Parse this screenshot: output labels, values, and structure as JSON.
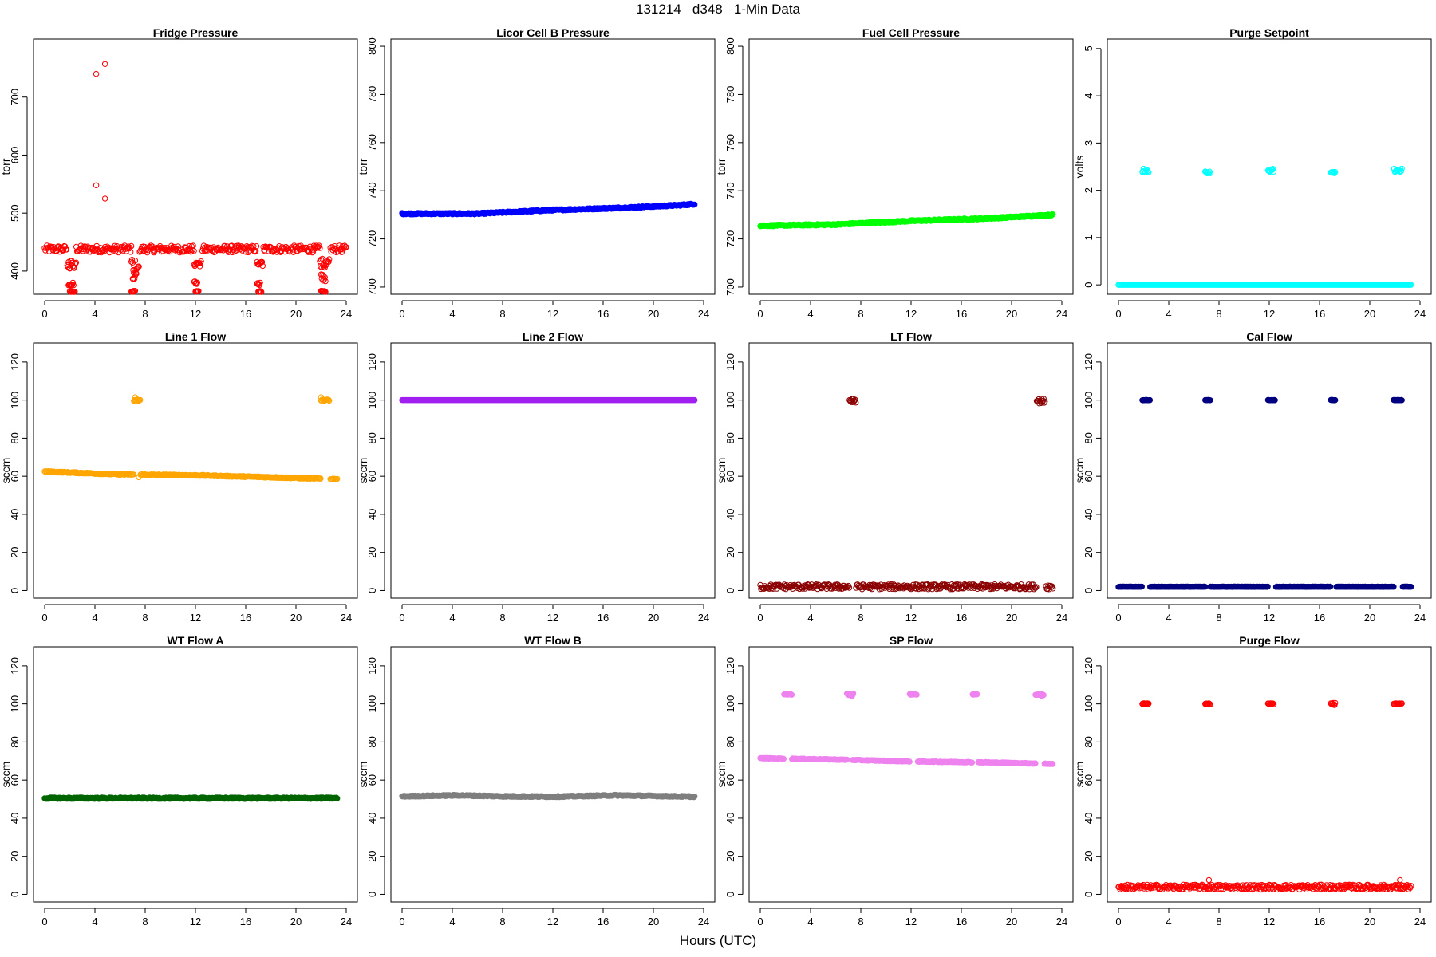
{
  "figure": {
    "title": "131214   d348   1-Min Data",
    "xlabel": "Hours (UTC)"
  },
  "chart_data": [
    {
      "type": "scatter",
      "title": "Fridge Pressure",
      "ylabel": "torr",
      "color": "#ff0000",
      "xlim": [
        0,
        24
      ],
      "ylim": [
        360,
        800
      ],
      "xticks": [
        "0",
        "4",
        "8",
        "12",
        "16",
        "20",
        "24"
      ],
      "yticks": [
        "400",
        "500",
        "600",
        "700"
      ],
      "yticks_values": [
        400,
        500,
        600,
        700
      ],
      "baseline": [
        [
          0,
          438
        ],
        [
          24,
          438
        ]
      ],
      "noise": 6,
      "gaps": [
        [
          1.8,
          2.5
        ],
        [
          6.9,
          7.5
        ],
        [
          11.9,
          12.5
        ],
        [
          16.9,
          17.4
        ],
        [
          21.9,
          22.7
        ]
      ],
      "clusters": [
        {
          "x0": 1.8,
          "x1": 2.5,
          "y": 412,
          "spread": 8
        },
        {
          "x0": 1.9,
          "x1": 2.3,
          "y": 378,
          "spread": 3
        },
        {
          "x0": 2.0,
          "x1": 2.4,
          "y": 365,
          "spread": 1
        },
        {
          "x0": 6.9,
          "x1": 7.5,
          "y": 410,
          "spread": 15
        },
        {
          "x0": 7.0,
          "x1": 7.3,
          "y": 392,
          "spread": 6
        },
        {
          "x0": 6.9,
          "x1": 7.2,
          "y": 365,
          "spread": 1
        },
        {
          "x0": 11.9,
          "x1": 12.5,
          "y": 413,
          "spread": 5
        },
        {
          "x0": 11.9,
          "x1": 12.2,
          "y": 380,
          "spread": 3
        },
        {
          "x0": 12.0,
          "x1": 12.3,
          "y": 365,
          "spread": 1
        },
        {
          "x0": 16.9,
          "x1": 17.4,
          "y": 412,
          "spread": 4
        },
        {
          "x0": 16.9,
          "x1": 17.2,
          "y": 378,
          "spread": 3
        },
        {
          "x0": 17.0,
          "x1": 17.3,
          "y": 365,
          "spread": 1
        },
        {
          "x0": 21.9,
          "x1": 22.7,
          "y": 412,
          "spread": 10
        },
        {
          "x0": 22.0,
          "x1": 22.4,
          "y": 390,
          "spread": 8
        },
        {
          "x0": 22.0,
          "x1": 22.4,
          "y": 365,
          "spread": 1
        }
      ],
      "outliers": [
        [
          4.1,
          740
        ],
        [
          4.8,
          757
        ],
        [
          4.1,
          548
        ],
        [
          4.8,
          525
        ]
      ],
      "marker": "open"
    },
    {
      "type": "scatter",
      "title": "Licor Cell B Pressure",
      "ylabel": "torr",
      "color": "#0000ff",
      "xlim": [
        0,
        24
      ],
      "ylim": [
        697,
        803
      ],
      "xticks": [
        "0",
        "4",
        "8",
        "12",
        "16",
        "20",
        "24"
      ],
      "yticks": [
        "700",
        "720",
        "740",
        "760",
        "780",
        "800"
      ],
      "yticks_values": [
        700,
        720,
        740,
        760,
        780,
        800
      ],
      "baseline": [
        [
          0,
          730.5
        ],
        [
          6,
          730.5
        ],
        [
          12,
          732
        ],
        [
          18,
          733
        ],
        [
          22,
          734
        ],
        [
          23.3,
          734.5
        ]
      ],
      "noise": 0.3,
      "gaps": [],
      "clusters": [],
      "outliers": [],
      "marker": "filled"
    },
    {
      "type": "scatter",
      "title": "Fuel Cell Pressure",
      "ylabel": "torr",
      "color": "#00ff00",
      "xlim": [
        0,
        24
      ],
      "ylim": [
        697,
        803
      ],
      "xticks": [
        "0",
        "4",
        "8",
        "12",
        "16",
        "20",
        "24"
      ],
      "yticks": [
        "700",
        "720",
        "740",
        "760",
        "780",
        "800"
      ],
      "yticks_values": [
        700,
        720,
        740,
        760,
        780,
        800
      ],
      "baseline": [
        [
          0,
          725.5
        ],
        [
          6,
          726
        ],
        [
          12,
          727.5
        ],
        [
          18,
          728.5
        ],
        [
          23.3,
          730
        ]
      ],
      "noise": 0.3,
      "gaps": [],
      "clusters": [],
      "outliers": [],
      "marker": "filled"
    },
    {
      "type": "scatter",
      "title": "Purge Setpoint",
      "ylabel": "volts",
      "color": "#00ffff",
      "xlim": [
        0,
        24
      ],
      "ylim": [
        -0.2,
        5.2
      ],
      "xticks": [
        "0",
        "4",
        "8",
        "12",
        "16",
        "20",
        "24"
      ],
      "yticks": [
        "0",
        "1",
        "2",
        "3",
        "4",
        "5"
      ],
      "yticks_values": [
        0,
        1,
        2,
        3,
        4,
        5
      ],
      "baseline": [
        [
          0,
          0
        ],
        [
          23.3,
          0
        ]
      ],
      "noise": 0,
      "gaps": [],
      "clusters": [
        {
          "x0": 1.9,
          "x1": 2.4,
          "y": 2.42,
          "spread": 0.04
        },
        {
          "x0": 6.9,
          "x1": 7.3,
          "y": 2.38,
          "spread": 0.02
        },
        {
          "x0": 11.9,
          "x1": 12.4,
          "y": 2.42,
          "spread": 0.04
        },
        {
          "x0": 16.9,
          "x1": 17.3,
          "y": 2.37,
          "spread": 0.02
        },
        {
          "x0": 21.9,
          "x1": 22.6,
          "y": 2.42,
          "spread": 0.04
        }
      ],
      "outliers": [],
      "marker": "open"
    },
    {
      "type": "scatter",
      "title": "Line 1 Flow",
      "ylabel": "sccm",
      "color": "#ffa500",
      "xlim": [
        0,
        24
      ],
      "ylim": [
        -4,
        130
      ],
      "xticks": [
        "0",
        "4",
        "8",
        "12",
        "16",
        "20",
        "24"
      ],
      "yticks": [
        "0",
        "20",
        "40",
        "60",
        "80",
        "100",
        "120"
      ],
      "yticks_values": [
        0,
        20,
        40,
        60,
        80,
        100,
        120
      ],
      "baseline": [
        [
          0,
          62.5
        ],
        [
          6,
          61
        ],
        [
          12,
          60.5
        ],
        [
          18,
          59.5
        ],
        [
          23.3,
          58.5
        ]
      ],
      "noise": 0.3,
      "gaps": [
        [
          7.1,
          7.6
        ],
        [
          22.0,
          22.7
        ]
      ],
      "clusters": [
        {
          "x0": 7.1,
          "x1": 7.6,
          "y": 100,
          "spread": 0.4
        },
        {
          "x0": 22.0,
          "x1": 22.7,
          "y": 100,
          "spread": 0.4
        }
      ],
      "outliers": [
        [
          7.2,
          101.5
        ],
        [
          22.0,
          101.5
        ],
        [
          7.5,
          59.5
        ]
      ],
      "marker": "open"
    },
    {
      "type": "scatter",
      "title": "Line 2 Flow",
      "ylabel": "sccm",
      "color": "#a020f0",
      "xlim": [
        0,
        24
      ],
      "ylim": [
        -4,
        130
      ],
      "xticks": [
        "0",
        "4",
        "8",
        "12",
        "16",
        "20",
        "24"
      ],
      "yticks": [
        "0",
        "20",
        "40",
        "60",
        "80",
        "100",
        "120"
      ],
      "yticks_values": [
        0,
        20,
        40,
        60,
        80,
        100,
        120
      ],
      "baseline": [
        [
          0,
          100
        ],
        [
          23.3,
          100
        ]
      ],
      "noise": 0,
      "gaps": [],
      "clusters": [],
      "outliers": [],
      "marker": "filled"
    },
    {
      "type": "scatter",
      "title": "LT Flow",
      "ylabel": "sccm",
      "color": "#8b0000",
      "xlim": [
        0,
        24
      ],
      "ylim": [
        -4,
        130
      ],
      "xticks": [
        "0",
        "4",
        "8",
        "12",
        "16",
        "20",
        "24"
      ],
      "yticks": [
        "0",
        "20",
        "40",
        "60",
        "80",
        "100",
        "120"
      ],
      "yticks_values": [
        0,
        20,
        40,
        60,
        80,
        100,
        120
      ],
      "baseline": [
        [
          0,
          2
        ],
        [
          23.3,
          2
        ]
      ],
      "noise": 1.3,
      "gaps": [
        [
          7.1,
          7.6
        ],
        [
          22.0,
          22.7
        ]
      ],
      "clusters": [
        {
          "x0": 7.1,
          "x1": 7.6,
          "y": 100,
          "spread": 1.3
        },
        {
          "x0": 22.0,
          "x1": 22.7,
          "y": 99.5,
          "spread": 1.3
        }
      ],
      "outliers": [],
      "marker": "open"
    },
    {
      "type": "scatter",
      "title": "Cal Flow",
      "ylabel": "sccm",
      "color": "#000080",
      "xlim": [
        0,
        24
      ],
      "ylim": [
        -4,
        130
      ],
      "xticks": [
        "0",
        "4",
        "8",
        "12",
        "16",
        "20",
        "24"
      ],
      "yticks": [
        "0",
        "20",
        "40",
        "60",
        "80",
        "100",
        "120"
      ],
      "yticks_values": [
        0,
        20,
        40,
        60,
        80,
        100,
        120
      ],
      "baseline": [
        [
          0,
          2
        ],
        [
          23.3,
          2
        ]
      ],
      "noise": 0.1,
      "gaps": [
        [
          1.9,
          2.5
        ],
        [
          6.9,
          7.3
        ],
        [
          11.9,
          12.5
        ],
        [
          16.9,
          17.3
        ],
        [
          21.9,
          22.6
        ]
      ],
      "clusters": [
        {
          "x0": 1.9,
          "x1": 2.5,
          "y": 100,
          "spread": 0.1
        },
        {
          "x0": 6.9,
          "x1": 7.3,
          "y": 100,
          "spread": 0.1
        },
        {
          "x0": 11.9,
          "x1": 12.5,
          "y": 100,
          "spread": 0.1
        },
        {
          "x0": 16.9,
          "x1": 17.3,
          "y": 100,
          "spread": 0.1
        },
        {
          "x0": 21.9,
          "x1": 22.6,
          "y": 100,
          "spread": 0.1
        }
      ],
      "outliers": [],
      "marker": "filled"
    },
    {
      "type": "scatter",
      "title": "WT Flow A",
      "ylabel": "sccm",
      "color": "#006400",
      "xlim": [
        0,
        24
      ],
      "ylim": [
        -4,
        130
      ],
      "xticks": [
        "0",
        "4",
        "8",
        "12",
        "16",
        "20",
        "24"
      ],
      "yticks": [
        "0",
        "20",
        "40",
        "60",
        "80",
        "100",
        "120"
      ],
      "yticks_values": [
        0,
        20,
        40,
        60,
        80,
        100,
        120
      ],
      "baseline": [
        [
          0,
          50.5
        ],
        [
          23.3,
          50.5
        ]
      ],
      "noise": 0.4,
      "gaps": [],
      "clusters": [],
      "outliers": [],
      "marker": "filled"
    },
    {
      "type": "scatter",
      "title": "WT Flow B",
      "ylabel": "sccm",
      "color": "#7f7f7f",
      "xlim": [
        0,
        24
      ],
      "ylim": [
        -4,
        130
      ],
      "xticks": [
        "0",
        "4",
        "8",
        "12",
        "16",
        "20",
        "24"
      ],
      "yticks": [
        "0",
        "20",
        "40",
        "60",
        "80",
        "100",
        "120"
      ],
      "yticks_values": [
        0,
        20,
        40,
        60,
        80,
        100,
        120
      ],
      "baseline": [
        [
          0,
          51.5
        ],
        [
          4.5,
          52
        ],
        [
          8,
          51.5
        ],
        [
          12,
          51.3
        ],
        [
          17,
          52
        ],
        [
          23.3,
          51.3
        ]
      ],
      "noise": 0.3,
      "gaps": [],
      "clusters": [],
      "outliers": [],
      "marker": "filled"
    },
    {
      "type": "scatter",
      "title": "SP Flow",
      "ylabel": "sccm",
      "color": "#ee82ee",
      "xlim": [
        0,
        24
      ],
      "ylim": [
        -4,
        130
      ],
      "xticks": [
        "0",
        "4",
        "8",
        "12",
        "16",
        "20",
        "24"
      ],
      "yticks": [
        "0",
        "20",
        "40",
        "60",
        "80",
        "100",
        "120"
      ],
      "yticks_values": [
        0,
        20,
        40,
        60,
        80,
        100,
        120
      ],
      "baseline": [
        [
          0,
          71.5
        ],
        [
          6,
          70.8
        ],
        [
          12,
          69.8
        ],
        [
          18,
          69.3
        ],
        [
          23.3,
          68.5
        ]
      ],
      "noise": 0.2,
      "gaps": [
        [
          1.9,
          2.5
        ],
        [
          6.9,
          7.3
        ],
        [
          11.9,
          12.5
        ],
        [
          16.9,
          17.3
        ],
        [
          21.9,
          22.6
        ]
      ],
      "clusters": [
        {
          "x0": 1.9,
          "x1": 2.5,
          "y": 105,
          "spread": 0.2
        },
        {
          "x0": 6.9,
          "x1": 7.4,
          "y": 105,
          "spread": 0.5
        },
        {
          "x0": 11.9,
          "x1": 12.5,
          "y": 105,
          "spread": 0.2
        },
        {
          "x0": 16.9,
          "x1": 17.3,
          "y": 105,
          "spread": 0.2
        },
        {
          "x0": 21.9,
          "x1": 22.6,
          "y": 105,
          "spread": 0.4
        }
      ],
      "outliers": [
        [
          7.3,
          104
        ],
        [
          22.4,
          104
        ]
      ],
      "marker": "filled"
    },
    {
      "type": "scatter",
      "title": "Purge Flow",
      "ylabel": "sccm",
      "color": "#ff0000",
      "xlim": [
        0,
        24
      ],
      "ylim": [
        -4,
        130
      ],
      "xticks": [
        "0",
        "4",
        "8",
        "12",
        "16",
        "20",
        "24"
      ],
      "yticks": [
        "0",
        "20",
        "40",
        "60",
        "80",
        "100",
        "120"
      ],
      "yticks_values": [
        0,
        20,
        40,
        60,
        80,
        100,
        120
      ],
      "baseline": [
        [
          0,
          3.8
        ],
        [
          23.3,
          3.8
        ]
      ],
      "noise": 1.3,
      "gaps": [],
      "clusters": [
        {
          "x0": 1.9,
          "x1": 2.4,
          "y": 100,
          "spread": 0.3
        },
        {
          "x0": 6.9,
          "x1": 7.3,
          "y": 100,
          "spread": 0.3
        },
        {
          "x0": 11.9,
          "x1": 12.4,
          "y": 100,
          "spread": 0.3
        },
        {
          "x0": 16.9,
          "x1": 17.3,
          "y": 100,
          "spread": 0.6
        },
        {
          "x0": 21.9,
          "x1": 22.6,
          "y": 100,
          "spread": 0.3
        }
      ],
      "outliers": [
        [
          7.2,
          7.5
        ],
        [
          22.4,
          7.5
        ]
      ],
      "marker": "open"
    }
  ]
}
